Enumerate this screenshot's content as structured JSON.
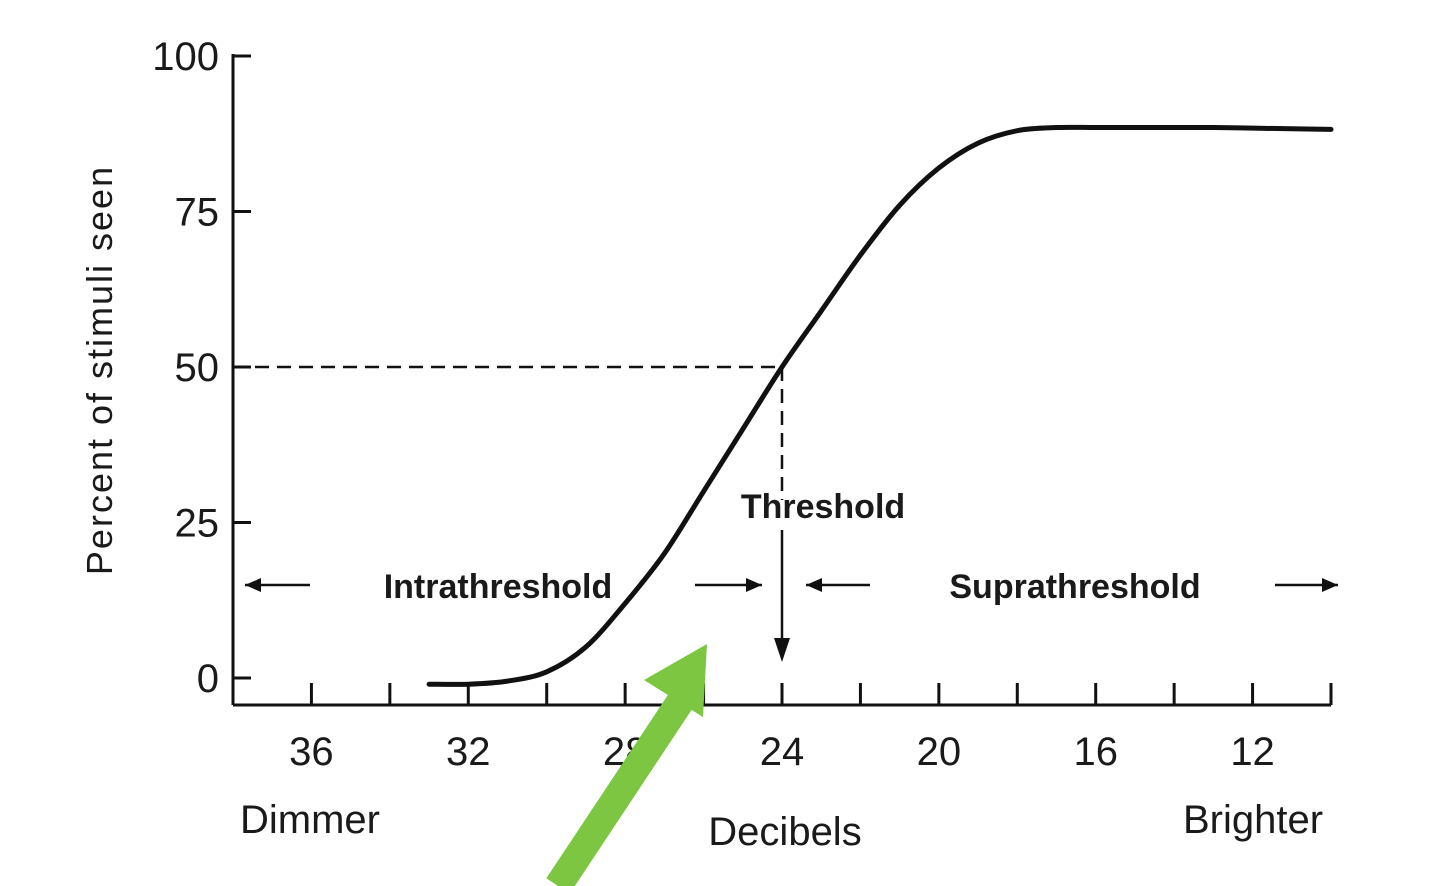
{
  "chart_data": {
    "type": "line",
    "title": "",
    "ylabel": "Percent of stimuli seen",
    "xlabel": "Decibels",
    "x_direction_labels": {
      "left": "Dimmer",
      "right": "Brighter"
    },
    "xlim": [
      38,
      10
    ],
    "ylim": [
      0,
      100
    ],
    "x_ticks": [
      36,
      32,
      28,
      24,
      20,
      16,
      12
    ],
    "x_minor_ticks": [
      38,
      36,
      34,
      32,
      30,
      28,
      26,
      24,
      22,
      20,
      18,
      16,
      14,
      12,
      10
    ],
    "y_ticks": [
      0,
      25,
      50,
      75,
      100
    ],
    "grid": false,
    "series": [
      {
        "values_x": [
          33,
          32,
          31,
          30,
          29,
          28,
          27,
          26,
          25,
          24,
          23,
          22,
          21,
          20,
          19,
          18,
          17,
          16,
          15,
          14,
          13,
          12,
          11,
          10
        ],
        "values_y": [
          -1,
          -1,
          -0.5,
          1,
          5,
          12,
          20,
          30,
          40,
          50,
          59,
          68,
          76,
          82,
          86,
          88,
          88.5,
          88.5,
          88.5,
          88.5,
          88.5,
          88.4,
          88.3,
          88.2
        ]
      }
    ],
    "threshold_point": {
      "x": 24,
      "y": 50
    },
    "annotations": {
      "threshold": "Threshold",
      "intrathreshold": "Intrathreshold",
      "suprathreshold": "Suprathreshold"
    },
    "overlay_arrow_color": "#7cc642",
    "line_color": "#111111"
  }
}
